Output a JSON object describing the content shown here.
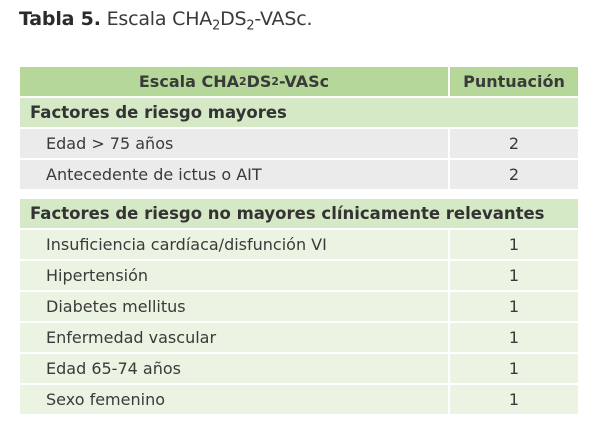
{
  "caption": {
    "label": "Tabla 5.",
    "title_prefix": " Escala CHA",
    "title_sub1": "2",
    "title_mid": "DS",
    "title_sub2": "2",
    "title_suffix": "-VASc."
  },
  "table": {
    "header": {
      "col1_prefix": "Escala CHA",
      "col1_sub1": "2",
      "col1_mid": "DS",
      "col1_sub2": "2",
      "col1_suffix": "-VASc",
      "col2": "Puntuación"
    },
    "section_major": {
      "title": "Factores de riesgo mayores",
      "rows": [
        {
          "factor": "Edad > 75 años",
          "score": "2"
        },
        {
          "factor": "Antecedente de ictus o AIT",
          "score": "2"
        }
      ]
    },
    "section_minor": {
      "title": "Factores de riesgo no mayores clínicamente relevantes",
      "rows": [
        {
          "factor": "Insuficiencia cardíaca/disfunción VI",
          "score": "1"
        },
        {
          "factor": "Hipertensión",
          "score": "1"
        },
        {
          "factor": "Diabetes mellitus",
          "score": "1"
        },
        {
          "factor": "Enfermedad vascular",
          "score": "1"
        },
        {
          "factor": "Edad 65-74 años",
          "score": "1"
        },
        {
          "factor": "Sexo femenino",
          "score": "1"
        }
      ]
    }
  },
  "colors": {
    "header_green": "#b5d89a",
    "section_green": "#d6e9c6",
    "light_green_rows": "#ebf4e2",
    "gray_rows": "#ebebeb"
  }
}
